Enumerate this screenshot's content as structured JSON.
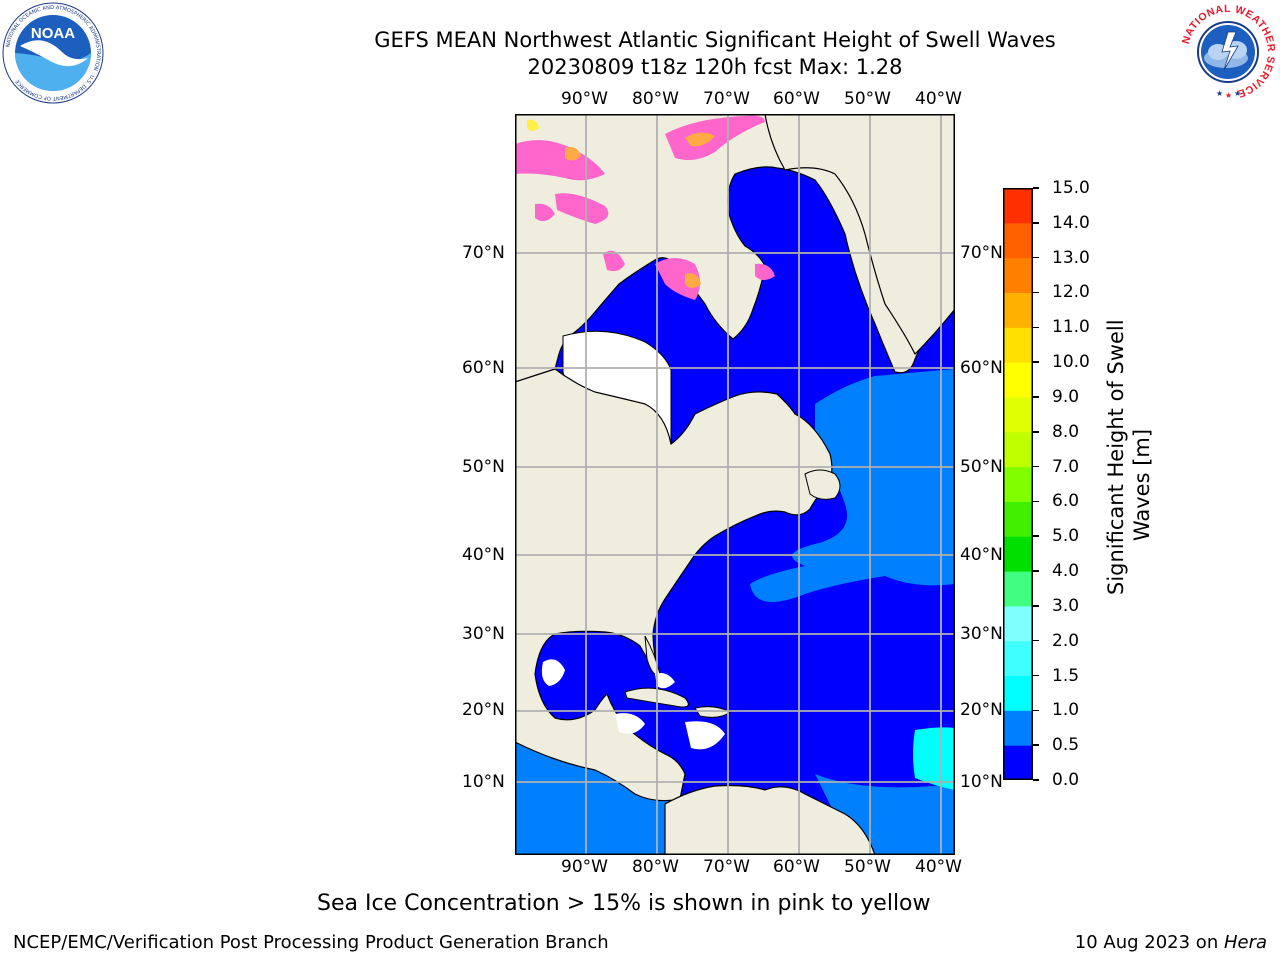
{
  "header": {
    "title_line1": "GEFS MEAN Northwest Atlantic Significant Height of Swell Waves",
    "title_line2": "20230809 t18z 120h fcst   Max: 1.28"
  },
  "logos": {
    "noaa_text": "NOAA",
    "noaa_ring_text": "NATIONAL OCEANIC AND ATMOSPHERIC ADMINISTRATION · U.S. DEPARTMENT OF COMMERCE",
    "nws_ring_text": "NATIONAL WEATHER SERVICE"
  },
  "map": {
    "lon_labels": [
      "90°W",
      "80°W",
      "70°W",
      "60°W",
      "50°W",
      "40°W"
    ],
    "lat_labels": [
      "70°N",
      "60°N",
      "50°N",
      "40°N",
      "30°N",
      "20°N",
      "10°N"
    ],
    "colors": {
      "land": "#efedde",
      "ocean_0_05": "#0000ff",
      "ocean_05_10": "#0080ff",
      "ocean_10_15": "#00ffff",
      "ice_pink": "#ff66cc",
      "ice_orange": "#ffaa44",
      "grid": "#b0b0b0"
    }
  },
  "colorbar": {
    "label_line1": "Significant Height of Swell",
    "label_line2": "Waves [m]",
    "ticks": [
      "15.0",
      "14.0",
      "13.0",
      "12.0",
      "11.0",
      "10.0",
      "9.0",
      "8.0",
      "7.0",
      "6.0",
      "5.0",
      "4.0",
      "3.0",
      "2.0",
      "1.5",
      "1.0",
      "0.5",
      "0.0"
    ],
    "colors_bottom_to_top": [
      "#0000ff",
      "#0080ff",
      "#00ffff",
      "#40ffff",
      "#80ffff",
      "#40ff80",
      "#00e000",
      "#40f000",
      "#80ff00",
      "#c0ff00",
      "#e0ff00",
      "#ffff00",
      "#ffe000",
      "#ffb000",
      "#ff8000",
      "#ff6000",
      "#ff3000",
      "#ff0000"
    ]
  },
  "caption": "Sea Ice Concentration > 15% is shown in pink to yellow",
  "footer": {
    "left": "NCEP/EMC/Verification Post Processing Product Generation Branch",
    "right_date": "10 Aug 2023 on ",
    "right_host": "Hera"
  }
}
